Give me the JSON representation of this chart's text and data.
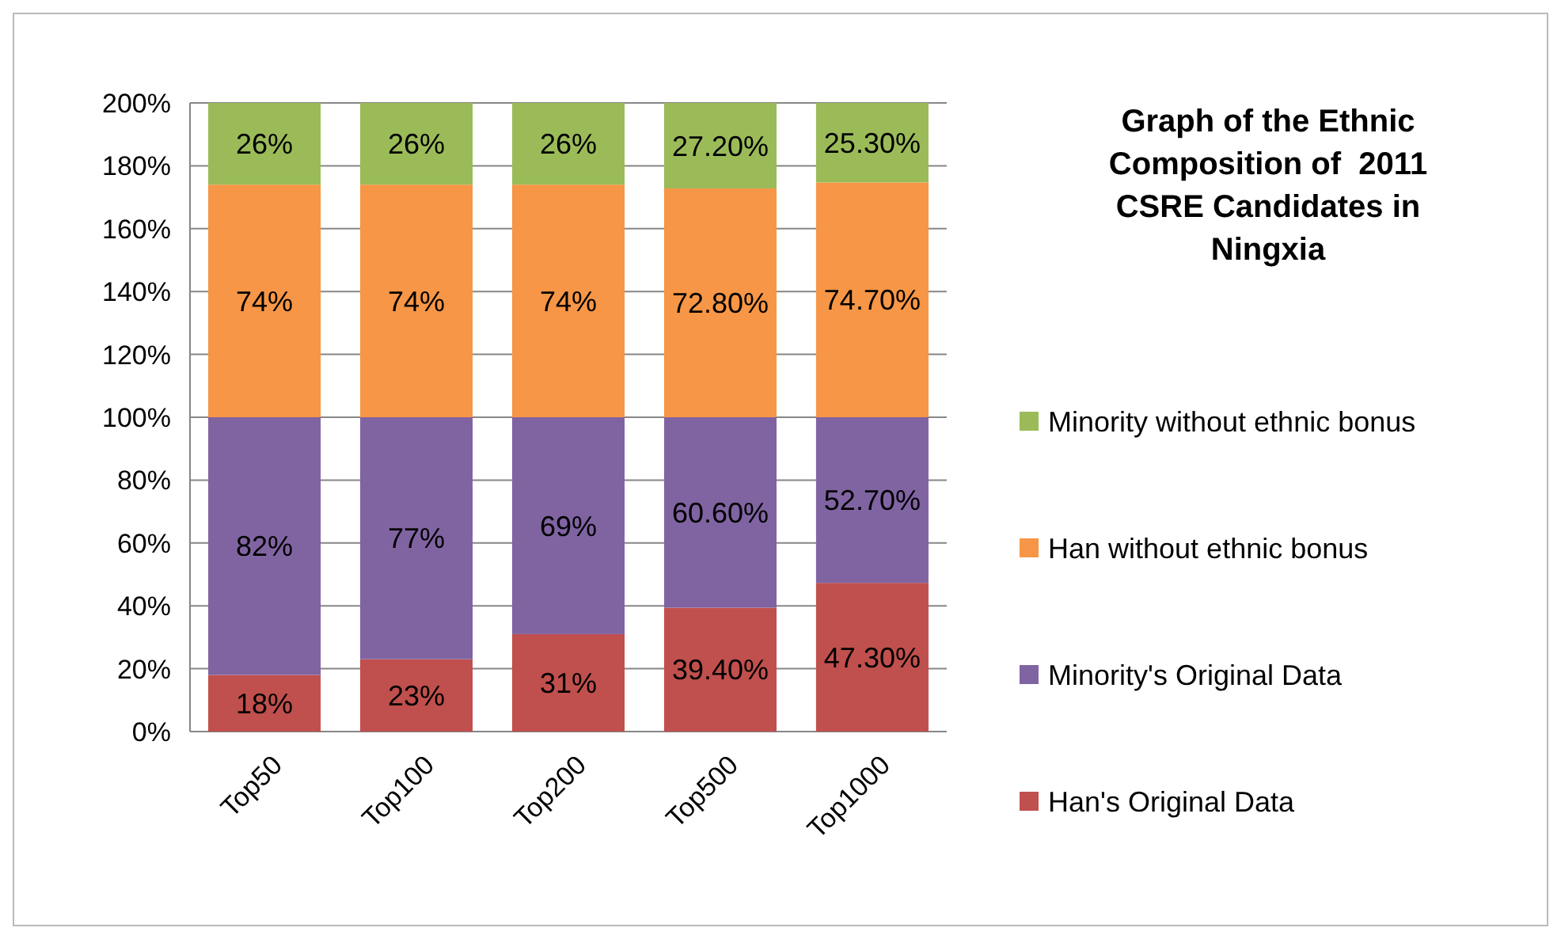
{
  "chart_data": {
    "type": "bar",
    "stacked": true,
    "title": "Graph of the Ethnic Composition of  2011 CSRE Candidates in Ningxia",
    "categories": [
      "Top50",
      "Top100",
      "Top200",
      "Top500",
      "Top1000"
    ],
    "series": [
      {
        "name": "Han's Original Data",
        "color": "#c0504d",
        "values": [
          18,
          23,
          31,
          39.4,
          47.3
        ],
        "value_labels": [
          "18%",
          "23%",
          "31%",
          "39.40%",
          "47.30%"
        ]
      },
      {
        "name": "Minority's Original Data",
        "color": "#8064a2",
        "values": [
          82,
          77,
          69,
          60.6,
          52.7
        ],
        "value_labels": [
          "82%",
          "77%",
          "69%",
          "60.60%",
          "52.70%"
        ]
      },
      {
        "name": "Han without ethnic bonus",
        "color": "#f79646",
        "values": [
          74,
          74,
          74,
          72.8,
          74.7
        ],
        "value_labels": [
          "74%",
          "74%",
          "74%",
          "72.80%",
          "74.70%"
        ]
      },
      {
        "name": "Minority without ethnic bonus",
        "color": "#9bbb59",
        "values": [
          26,
          26,
          26,
          27.2,
          25.3
        ],
        "value_labels": [
          "26%",
          "26%",
          "26%",
          "27.20%",
          "25.30%"
        ]
      }
    ],
    "ylim": [
      0,
      200
    ],
    "yticks": [
      {
        "value": 0,
        "label": "0%"
      },
      {
        "value": 20,
        "label": "20%"
      },
      {
        "value": 40,
        "label": "40%"
      },
      {
        "value": 60,
        "label": "60%"
      },
      {
        "value": 80,
        "label": "80%"
      },
      {
        "value": 100,
        "label": "100%"
      },
      {
        "value": 120,
        "label": "120%"
      },
      {
        "value": 140,
        "label": "140%"
      },
      {
        "value": 160,
        "label": "160%"
      },
      {
        "value": 180,
        "label": "180%"
      },
      {
        "value": 200,
        "label": "200%"
      }
    ],
    "grid": "y",
    "legend": "right"
  }
}
